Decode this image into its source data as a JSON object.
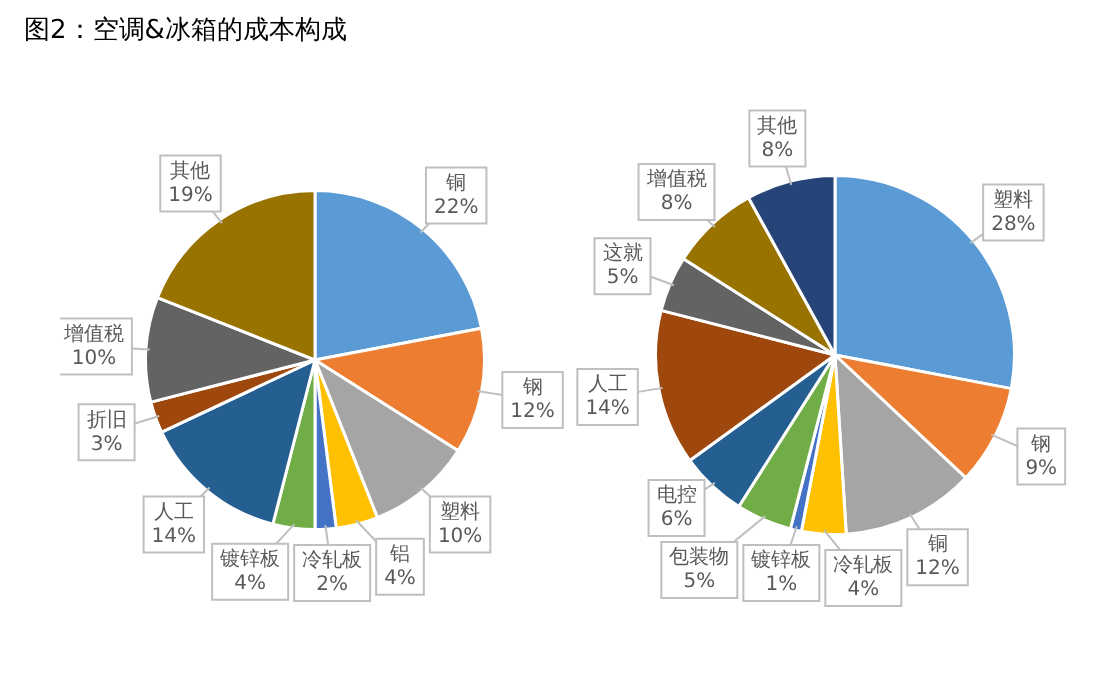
{
  "chart_data": [
    {
      "type": "pie",
      "title": "图2：空调&冰箱的成本构成",
      "categories": [
        "铜",
        "钢",
        "塑料",
        "铝",
        "冷轧板",
        "镀锌板",
        "人工",
        "折旧",
        "增值税",
        "其他"
      ],
      "values": [
        22,
        12,
        10,
        4,
        2,
        4,
        14,
        3,
        10,
        19
      ],
      "colors": [
        "#5b9bd5",
        "#ed7d31",
        "#a5a5a5",
        "#ffc000",
        "#4472c4",
        "#70ad47",
        "#255e91",
        "#9e480e",
        "#636363",
        "#997300"
      ],
      "value_labels": [
        "22%",
        "12%",
        "10%",
        "4%",
        "2%",
        "4%",
        "14%",
        "3%",
        "10%",
        "19%"
      ],
      "legend": false
    },
    {
      "type": "pie",
      "categories": [
        "塑料",
        "钢",
        "铜",
        "冷轧板",
        "镀锌板",
        "包装物",
        "电控",
        "人工",
        "这就",
        "增值税",
        "其他"
      ],
      "values": [
        28,
        9,
        12,
        4,
        1,
        5,
        6,
        14,
        5,
        8,
        8
      ],
      "colors": [
        "#5b9bd5",
        "#ed7d31",
        "#a5a5a5",
        "#ffc000",
        "#4472c4",
        "#70ad47",
        "#255e91",
        "#9e480e",
        "#636363",
        "#997300",
        "#264478"
      ],
      "value_labels": [
        "28%",
        "9%",
        "12%",
        "4%",
        "1%",
        "5%",
        "6%",
        "14%",
        "5%",
        "8%",
        "8%"
      ],
      "legend": false
    }
  ]
}
